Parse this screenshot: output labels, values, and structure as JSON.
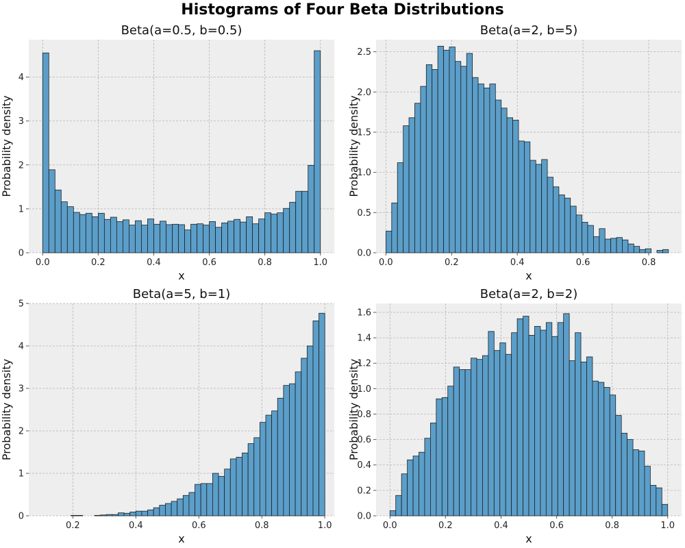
{
  "figure": {
    "title": "Histograms of Four Beta Distributions"
  },
  "chart_data": [
    {
      "type": "bar",
      "title": "Beta(a=0.5, b=0.5)",
      "xlabel": "x",
      "ylabel": "Probability density",
      "xlim": [
        -0.05,
        1.05
      ],
      "ylim": [
        0,
        4.85
      ],
      "xticks": [
        0.0,
        0.2,
        0.4,
        0.6,
        0.8,
        1.0
      ],
      "xtick_labels": [
        "0.0",
        "0.2",
        "0.4",
        "0.6",
        "0.8",
        "1.0"
      ],
      "yticks": [
        0,
        1,
        2,
        3,
        4
      ],
      "ytick_labels": [
        "0",
        "1",
        "2",
        "3",
        "4"
      ],
      "grid": true,
      "bin_start": 0.0,
      "bin_end": 1.0,
      "values": [
        4.55,
        1.89,
        1.43,
        1.16,
        1.05,
        0.92,
        0.87,
        0.9,
        0.82,
        0.9,
        0.76,
        0.81,
        0.71,
        0.75,
        0.63,
        0.73,
        0.63,
        0.77,
        0.65,
        0.72,
        0.64,
        0.65,
        0.64,
        0.52,
        0.65,
        0.66,
        0.63,
        0.71,
        0.58,
        0.68,
        0.72,
        0.76,
        0.7,
        0.82,
        0.66,
        0.77,
        0.91,
        0.88,
        0.91,
        1.01,
        1.15,
        1.4,
        1.4,
        1.99,
        4.6
      ]
    },
    {
      "type": "bar",
      "title": "Beta(a=2, b=5)",
      "xlabel": "x",
      "ylabel": "Probability density",
      "xlim": [
        -0.03,
        0.9
      ],
      "ylim": [
        0,
        2.65
      ],
      "xticks": [
        0.0,
        0.2,
        0.4,
        0.6,
        0.8
      ],
      "xtick_labels": [
        "0.0",
        "0.2",
        "0.4",
        "0.6",
        "0.8"
      ],
      "yticks": [
        0.0,
        0.5,
        1.0,
        1.5,
        2.0,
        2.5
      ],
      "ytick_labels": [
        "0.0",
        "0.5",
        "1.0",
        "1.5",
        "2.0",
        "2.5"
      ],
      "grid": true,
      "bin_start": 0.0,
      "bin_end": 0.86,
      "values": [
        0.27,
        0.62,
        1.12,
        1.58,
        1.68,
        1.86,
        2.07,
        2.34,
        2.28,
        2.57,
        2.52,
        2.56,
        2.38,
        2.32,
        2.48,
        2.18,
        2.1,
        2.05,
        2.1,
        1.9,
        1.8,
        1.68,
        1.65,
        1.39,
        1.38,
        1.15,
        1.1,
        1.16,
        0.94,
        0.82,
        0.72,
        0.68,
        0.58,
        0.47,
        0.38,
        0.34,
        0.2,
        0.3,
        0.17,
        0.18,
        0.19,
        0.16,
        0.11,
        0.08,
        0.04,
        0.05,
        0.0,
        0.03,
        0.04
      ]
    },
    {
      "type": "bar",
      "title": "Beta(a=5, b=1)",
      "xlabel": "x",
      "ylabel": "Probability density",
      "xlim": [
        0.06,
        1.03
      ],
      "ylim": [
        0,
        5.0
      ],
      "xticks": [
        0.2,
        0.4,
        0.6,
        0.8,
        1.0
      ],
      "xtick_labels": [
        "0.2",
        "0.4",
        "0.6",
        "0.8",
        "1.0"
      ],
      "yticks": [
        0,
        1,
        2,
        3,
        4,
        5
      ],
      "ytick_labels": [
        "0",
        "1",
        "2",
        "3",
        "4",
        "5"
      ],
      "grid": true,
      "bin_start": 0.1,
      "bin_end": 1.0,
      "values": [
        0.0,
        0.0,
        0.0,
        0.0,
        0.0,
        0.01,
        0.01,
        0.0,
        0.0,
        0.01,
        0.02,
        0.03,
        0.03,
        0.07,
        0.06,
        0.09,
        0.11,
        0.11,
        0.14,
        0.19,
        0.25,
        0.29,
        0.34,
        0.4,
        0.48,
        0.55,
        0.74,
        0.76,
        0.76,
        1.0,
        0.93,
        1.1,
        1.34,
        1.38,
        1.48,
        1.7,
        1.84,
        2.2,
        2.37,
        2.47,
        2.77,
        3.07,
        3.11,
        3.39,
        3.71,
        4.0,
        4.59,
        4.77
      ]
    },
    {
      "type": "bar",
      "title": "Beta(a=2, b=2)",
      "xlabel": "x",
      "ylabel": "Probability density",
      "xlim": [
        -0.05,
        1.05
      ],
      "ylim": [
        0,
        1.67
      ],
      "xticks": [
        0.0,
        0.2,
        0.4,
        0.6,
        0.8,
        1.0
      ],
      "xtick_labels": [
        "0.0",
        "0.2",
        "0.4",
        "0.6",
        "0.8",
        "1.0"
      ],
      "yticks": [
        0.0,
        0.2,
        0.4,
        0.6,
        0.8,
        1.0,
        1.2,
        1.4,
        1.6
      ],
      "ytick_labels": [
        "0.0",
        "0.2",
        "0.4",
        "0.6",
        "0.8",
        "1.0",
        "1.2",
        "1.4",
        "1.6"
      ],
      "grid": true,
      "bin_start": 0.0,
      "bin_end": 1.0,
      "values": [
        0.04,
        0.16,
        0.33,
        0.44,
        0.47,
        0.5,
        0.61,
        0.73,
        0.92,
        0.93,
        1.02,
        1.17,
        1.15,
        1.15,
        1.24,
        1.23,
        1.26,
        1.45,
        1.3,
        1.36,
        1.27,
        1.44,
        1.55,
        1.57,
        1.42,
        1.49,
        1.46,
        1.52,
        1.41,
        1.52,
        1.59,
        1.22,
        1.44,
        1.21,
        1.25,
        1.06,
        1.05,
        1.01,
        0.95,
        0.79,
        0.65,
        0.6,
        0.52,
        0.51,
        0.39,
        0.24,
        0.22,
        0.09
      ]
    }
  ]
}
